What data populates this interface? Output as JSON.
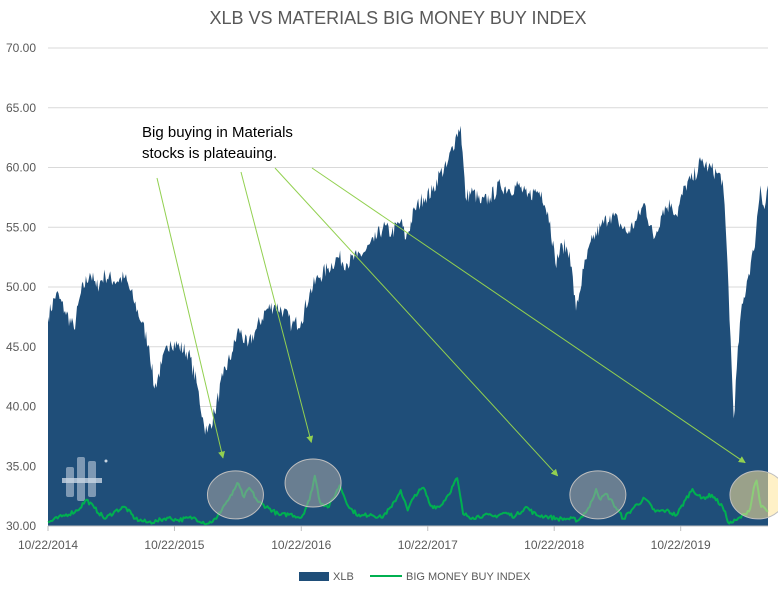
{
  "chart_data": {
    "type": "area",
    "title": "XLB VS MATERIALS BIG MONEY BUY INDEX",
    "ylim": [
      30,
      70
    ],
    "yticks": [
      "70.00",
      "65.00",
      "60.00",
      "55.00",
      "50.00",
      "45.00",
      "40.00",
      "35.00",
      "30.00"
    ],
    "xticks": [
      "10/22/2014",
      "10/22/2015",
      "10/22/2016",
      "10/22/2017",
      "10/22/2018",
      "10/22/2019"
    ],
    "x_start": "10/22/2014",
    "x_end": "6/30/2020",
    "grid": true,
    "legend_position": "bottom",
    "annotation": [
      "Big buying in Materials",
      "stocks is plateauing."
    ],
    "series": [
      {
        "name": "XLB",
        "type": "area",
        "color": "#1f4e79",
        "points": [
          [
            "2014-10-22",
            47.5
          ],
          [
            "2014-11-15",
            49.5
          ],
          [
            "2014-12-10",
            48.0
          ],
          [
            "2015-01-05",
            46.5
          ],
          [
            "2015-01-25",
            49.5
          ],
          [
            "2015-02-20",
            51.2
          ],
          [
            "2015-03-10",
            50.0
          ],
          [
            "2015-04-05",
            51.0
          ],
          [
            "2015-05-01",
            50.5
          ],
          [
            "2015-06-01",
            50.8
          ],
          [
            "2015-06-25",
            49.0
          ],
          [
            "2015-07-20",
            47.0
          ],
          [
            "2015-08-10",
            45.0
          ],
          [
            "2015-08-25",
            41.5
          ],
          [
            "2015-09-15",
            43.5
          ],
          [
            "2015-10-10",
            45.5
          ],
          [
            "2015-11-05",
            45.0
          ],
          [
            "2015-12-01",
            44.5
          ],
          [
            "2015-12-25",
            42.0
          ],
          [
            "2016-01-15",
            38.5
          ],
          [
            "2016-01-25",
            37.8
          ],
          [
            "2016-02-15",
            39.5
          ],
          [
            "2016-03-10",
            42.5
          ],
          [
            "2016-04-05",
            44.5
          ],
          [
            "2016-04-25",
            46.5
          ],
          [
            "2016-05-20",
            45.0
          ],
          [
            "2016-06-15",
            46.5
          ],
          [
            "2016-07-10",
            48.0
          ],
          [
            "2016-08-05",
            48.5
          ],
          [
            "2016-09-01",
            48.0
          ],
          [
            "2016-09-25",
            46.8
          ],
          [
            "2016-10-22",
            47.2
          ],
          [
            "2016-11-15",
            49.5
          ],
          [
            "2016-12-10",
            50.8
          ],
          [
            "2017-01-05",
            51.5
          ],
          [
            "2017-02-05",
            52.5
          ],
          [
            "2017-03-01",
            52.0
          ],
          [
            "2017-04-01",
            52.5
          ],
          [
            "2017-04-25",
            53.0
          ],
          [
            "2017-05-20",
            53.8
          ],
          [
            "2017-06-15",
            55.0
          ],
          [
            "2017-07-10",
            54.5
          ],
          [
            "2017-08-05",
            55.5
          ],
          [
            "2017-08-20",
            54.0
          ],
          [
            "2017-09-15",
            56.5
          ],
          [
            "2017-10-10",
            57.5
          ],
          [
            "2017-11-05",
            58.0
          ],
          [
            "2017-11-25",
            59.5
          ],
          [
            "2017-12-15",
            60.0
          ],
          [
            "2018-01-10",
            62.5
          ],
          [
            "2018-01-25",
            63.5
          ],
          [
            "2018-02-08",
            57.5
          ],
          [
            "2018-03-01",
            58.0
          ],
          [
            "2018-03-25",
            57.0
          ],
          [
            "2018-04-20",
            57.5
          ],
          [
            "2018-05-20",
            58.5
          ],
          [
            "2018-06-15",
            58.2
          ],
          [
            "2018-07-10",
            58.5
          ],
          [
            "2018-08-05",
            57.5
          ],
          [
            "2018-08-25",
            58.0
          ],
          [
            "2018-09-15",
            58.0
          ],
          [
            "2018-10-10",
            55.5
          ],
          [
            "2018-10-25",
            52.0
          ],
          [
            "2018-11-15",
            53.5
          ],
          [
            "2018-12-05",
            53.0
          ],
          [
            "2018-12-24",
            48.0
          ],
          [
            "2019-01-15",
            51.5
          ],
          [
            "2019-02-10",
            54.0
          ],
          [
            "2019-03-05",
            55.0
          ],
          [
            "2019-04-01",
            56.0
          ],
          [
            "2019-04-25",
            55.5
          ],
          [
            "2019-05-20",
            54.5
          ],
          [
            "2019-06-15",
            55.5
          ],
          [
            "2019-07-10",
            57.0
          ],
          [
            "2019-08-05",
            54.0
          ],
          [
            "2019-09-01",
            56.5
          ],
          [
            "2019-09-25",
            57.0
          ],
          [
            "2019-10-10",
            56.0
          ],
          [
            "2019-11-05",
            58.5
          ],
          [
            "2019-11-25",
            59.0
          ],
          [
            "2019-12-20",
            60.5
          ],
          [
            "2020-01-10",
            60.0
          ],
          [
            "2020-02-05",
            59.5
          ],
          [
            "2020-02-20",
            59.0
          ],
          [
            "2020-03-05",
            52.0
          ],
          [
            "2020-03-23",
            39.0
          ],
          [
            "2020-04-10",
            47.0
          ],
          [
            "2020-04-30",
            50.5
          ],
          [
            "2020-05-20",
            53.0
          ],
          [
            "2020-06-08",
            58.5
          ],
          [
            "2020-06-20",
            56.5
          ],
          [
            "2020-06-30",
            58.5
          ]
        ]
      },
      {
        "name": "BIG MONEY BUY INDEX",
        "type": "line",
        "color": "#00b050",
        "points": [
          [
            "2014-10-22",
            30.3
          ],
          [
            "2014-12-01",
            30.8
          ],
          [
            "2015-01-15",
            31.3
          ],
          [
            "2015-02-10",
            32.2
          ],
          [
            "2015-03-05",
            31.5
          ],
          [
            "2015-04-05",
            30.6
          ],
          [
            "2015-05-01",
            31.2
          ],
          [
            "2015-06-01",
            31.6
          ],
          [
            "2015-07-01",
            30.6
          ],
          [
            "2015-08-05",
            30.3
          ],
          [
            "2015-09-01",
            30.4
          ],
          [
            "2015-10-01",
            30.7
          ],
          [
            "2015-11-01",
            30.5
          ],
          [
            "2015-12-15",
            30.7
          ],
          [
            "2016-01-25",
            30.2
          ],
          [
            "2016-02-20",
            30.6
          ],
          [
            "2016-03-10",
            31.6
          ],
          [
            "2016-04-05",
            32.6
          ],
          [
            "2016-04-20",
            33.6
          ],
          [
            "2016-05-10",
            32.4
          ],
          [
            "2016-05-25",
            33.2
          ],
          [
            "2016-06-20",
            32.0
          ],
          [
            "2016-07-20",
            31.5
          ],
          [
            "2016-08-20",
            30.9
          ],
          [
            "2016-09-20",
            31.0
          ],
          [
            "2016-10-22",
            30.7
          ],
          [
            "2016-11-15",
            32.2
          ],
          [
            "2016-11-30",
            34.2
          ],
          [
            "2016-12-15",
            32.0
          ],
          [
            "2017-01-10",
            31.6
          ],
          [
            "2017-02-10",
            33.4
          ],
          [
            "2017-03-10",
            31.5
          ],
          [
            "2017-04-10",
            30.8
          ],
          [
            "2017-05-10",
            31.0
          ],
          [
            "2017-06-10",
            30.7
          ],
          [
            "2017-07-10",
            31.6
          ],
          [
            "2017-08-05",
            33.0
          ],
          [
            "2017-08-25",
            31.3
          ],
          [
            "2017-09-15",
            32.6
          ],
          [
            "2017-10-10",
            33.2
          ],
          [
            "2017-10-30",
            31.7
          ],
          [
            "2017-11-25",
            31.6
          ],
          [
            "2017-12-20",
            32.6
          ],
          [
            "2018-01-15",
            34.0
          ],
          [
            "2018-02-01",
            31.0
          ],
          [
            "2018-03-01",
            30.7
          ],
          [
            "2018-04-01",
            30.9
          ],
          [
            "2018-05-01",
            30.8
          ],
          [
            "2018-06-01",
            31.1
          ],
          [
            "2018-07-01",
            30.8
          ],
          [
            "2018-08-01",
            31.6
          ],
          [
            "2018-09-01",
            30.9
          ],
          [
            "2018-10-01",
            30.8
          ],
          [
            "2018-11-01",
            30.6
          ],
          [
            "2018-12-01",
            30.6
          ],
          [
            "2019-01-01",
            30.5
          ],
          [
            "2019-02-01",
            31.6
          ],
          [
            "2019-02-20",
            33.1
          ],
          [
            "2019-03-05",
            32.2
          ],
          [
            "2019-03-20",
            32.7
          ],
          [
            "2019-04-10",
            31.9
          ],
          [
            "2019-05-10",
            30.6
          ],
          [
            "2019-06-10",
            31.6
          ],
          [
            "2019-07-10",
            32.3
          ],
          [
            "2019-08-10",
            31.2
          ],
          [
            "2019-09-10",
            31.3
          ],
          [
            "2019-10-10",
            30.9
          ],
          [
            "2019-11-05",
            32.2
          ],
          [
            "2019-11-25",
            33.1
          ],
          [
            "2019-12-20",
            32.3
          ],
          [
            "2020-01-20",
            32.6
          ],
          [
            "2020-02-20",
            31.6
          ],
          [
            "2020-03-10",
            30.2
          ],
          [
            "2020-04-01",
            30.5
          ],
          [
            "2020-04-25",
            31.0
          ],
          [
            "2020-05-10",
            31.5
          ],
          [
            "2020-05-20",
            33.2
          ],
          [
            "2020-05-28",
            33.8
          ],
          [
            "2020-06-10",
            31.6
          ],
          [
            "2020-06-30",
            31.2
          ]
        ]
      }
    ],
    "highlights": [
      {
        "date": "2016-04-15",
        "value": 32.6,
        "color": "#a6a6a6"
      },
      {
        "date": "2016-11-25",
        "value": 33.6,
        "color": "#a6a6a6"
      },
      {
        "date": "2019-02-25",
        "value": 32.6,
        "color": "#a6a6a6"
      },
      {
        "date": "2020-06-01",
        "value": 32.6,
        "color": "#ffe699"
      }
    ],
    "arrows": [
      {
        "to_date": "2016-03-10",
        "to_value": 35.7
      },
      {
        "to_date": "2016-11-20",
        "to_value": 37.0
      },
      {
        "to_date": "2018-11-01",
        "to_value": 34.2
      },
      {
        "to_date": "2020-04-25",
        "to_value": 35.3
      }
    ]
  }
}
